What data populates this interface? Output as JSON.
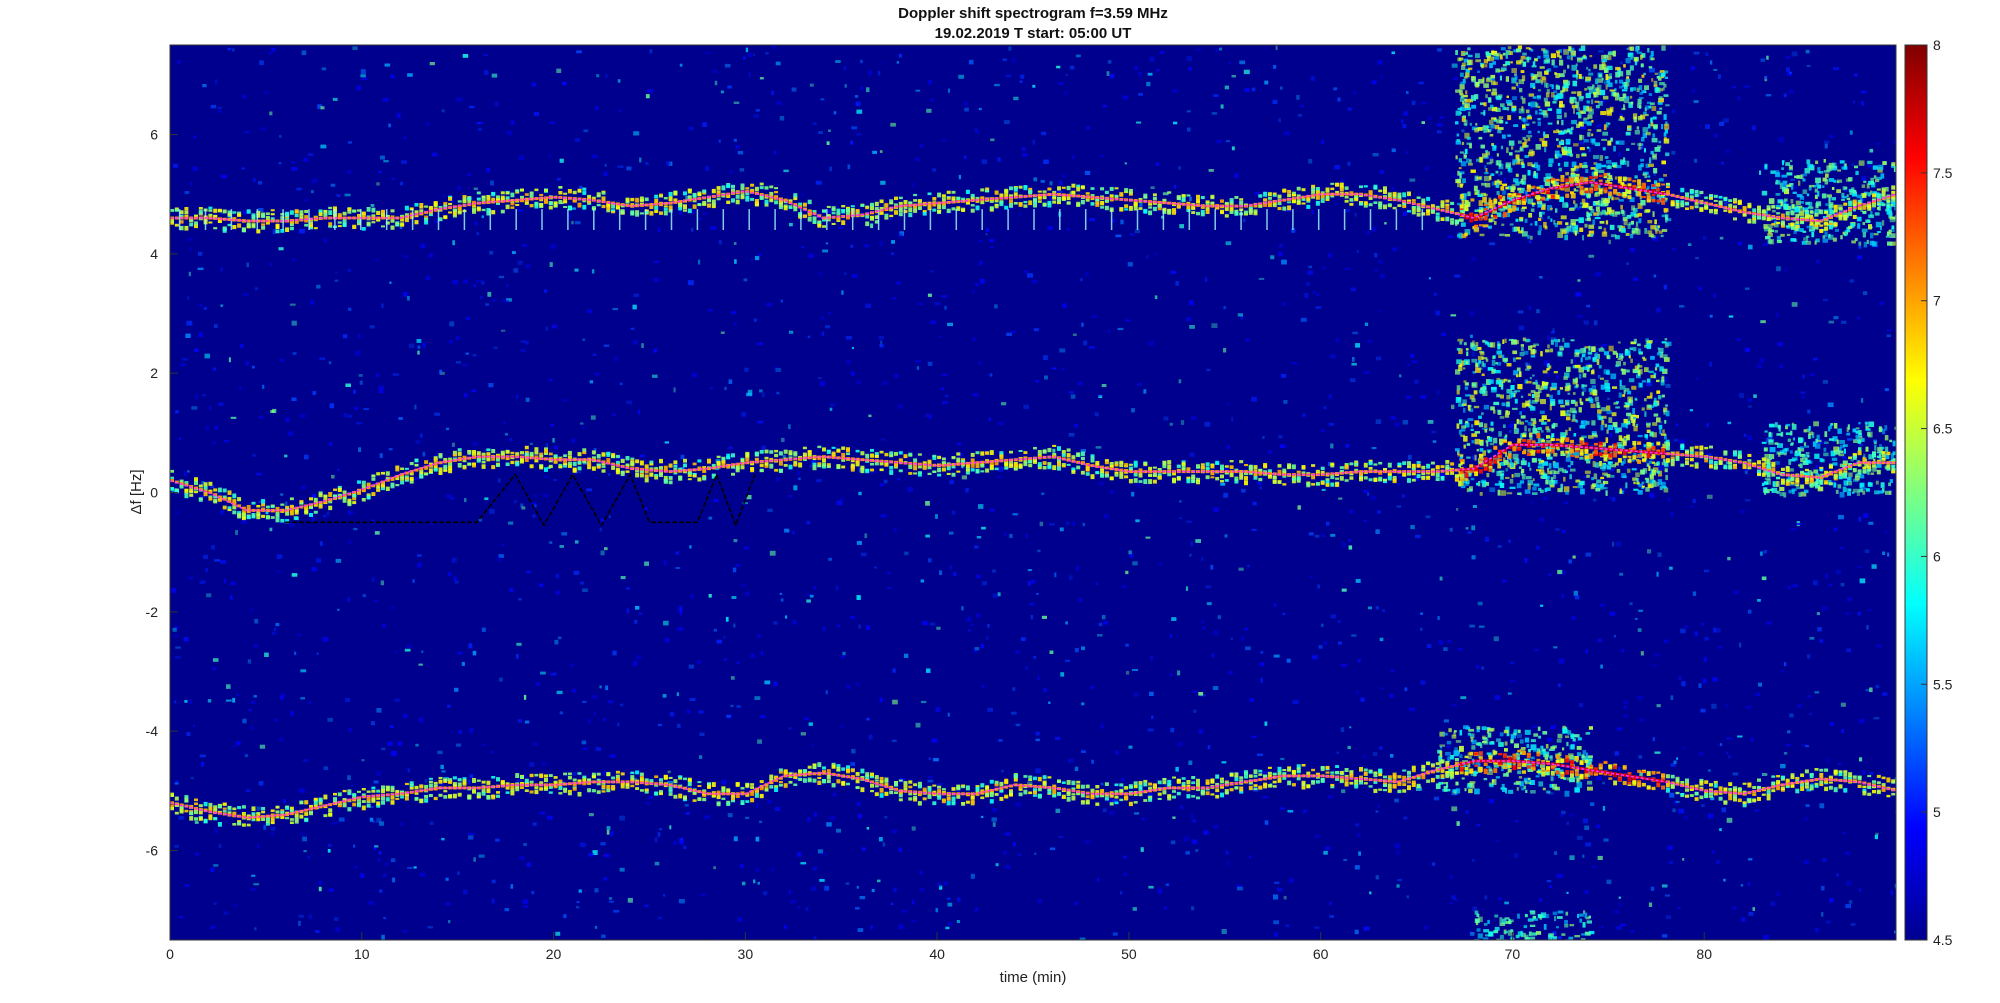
{
  "chart_data": {
    "type": "heatmap",
    "title": "Doppler shift spectrogram f=3.59 MHz",
    "subtitle": "19.02.2019   T start: 05:00 UT",
    "xlabel": "time (min)",
    "ylabel": "Δf [Hz]",
    "xlim": [
      0,
      90
    ],
    "ylim": [
      -7.5,
      7.5
    ],
    "x_ticks": [
      0,
      10,
      20,
      30,
      40,
      50,
      60,
      70,
      80
    ],
    "y_ticks": [
      6,
      4,
      2,
      0,
      -2,
      -4,
      -6
    ],
    "colorbar": {
      "range": [
        4.5,
        8
      ],
      "ticks": [
        "8",
        "7.5",
        "7",
        "6.5",
        "6",
        "5.5",
        "5",
        "4.5"
      ],
      "colormap": "jet"
    },
    "colors": {
      "background": "#00008f",
      "trace": "#ff33ff",
      "secondary": "#000000"
    },
    "series": [
      {
        "x": [
          0,
          2,
          4,
          6,
          8,
          10,
          12,
          14,
          16,
          18,
          20,
          22,
          24,
          26,
          28,
          30,
          32,
          34,
          36,
          38,
          40,
          42,
          44,
          46,
          48,
          50,
          52,
          54,
          56,
          58,
          60,
          62,
          64,
          66,
          68,
          70,
          72,
          74,
          76,
          78,
          80,
          82,
          84,
          86,
          88,
          90
        ],
        "y": [
          4.6,
          4.6,
          4.55,
          4.55,
          4.6,
          4.6,
          4.6,
          4.75,
          4.85,
          4.9,
          4.95,
          4.9,
          4.8,
          4.85,
          4.95,
          5.05,
          4.9,
          4.6,
          4.65,
          4.8,
          4.85,
          4.9,
          4.95,
          5.0,
          4.95,
          4.9,
          4.85,
          4.8,
          4.8,
          4.9,
          5.0,
          5.0,
          4.9,
          4.75,
          4.6,
          4.9,
          5.1,
          5.2,
          5.1,
          5.0,
          4.85,
          4.7,
          4.6,
          4.55,
          4.8,
          5.0
        ]
      },
      {
        "x": [
          0,
          2,
          4,
          6,
          8,
          10,
          12,
          14,
          16,
          18,
          20,
          22,
          24,
          26,
          28,
          30,
          32,
          34,
          36,
          38,
          40,
          42,
          44,
          46,
          48,
          50,
          52,
          54,
          56,
          58,
          60,
          62,
          64,
          66,
          68,
          70,
          72,
          74,
          76,
          78,
          80,
          82,
          84,
          86,
          88,
          90
        ],
        "y": [
          0.2,
          0.0,
          -0.3,
          -0.3,
          -0.15,
          0.05,
          0.3,
          0.5,
          0.6,
          0.6,
          0.55,
          0.55,
          0.4,
          0.35,
          0.4,
          0.5,
          0.55,
          0.6,
          0.55,
          0.5,
          0.45,
          0.5,
          0.55,
          0.6,
          0.45,
          0.35,
          0.35,
          0.35,
          0.35,
          0.3,
          0.3,
          0.35,
          0.35,
          0.35,
          0.4,
          0.8,
          0.8,
          0.75,
          0.7,
          0.65,
          0.6,
          0.5,
          0.3,
          0.25,
          0.5,
          0.5
        ]
      },
      {
        "x": [
          0,
          2,
          4,
          6,
          8,
          10,
          12,
          14,
          16,
          18,
          20,
          22,
          24,
          26,
          28,
          30,
          32,
          34,
          36,
          38,
          40,
          42,
          44,
          46,
          48,
          50,
          52,
          54,
          56,
          58,
          60,
          62,
          64,
          66,
          68,
          70,
          72,
          74,
          76,
          78,
          80,
          82,
          84,
          86,
          88,
          90
        ],
        "y": [
          -5.2,
          -5.35,
          -5.45,
          -5.4,
          -5.25,
          -5.1,
          -5.05,
          -4.95,
          -4.95,
          -4.9,
          -4.9,
          -4.85,
          -4.85,
          -4.9,
          -5.05,
          -5.05,
          -4.75,
          -4.7,
          -4.8,
          -5.0,
          -5.05,
          -5.05,
          -4.9,
          -4.95,
          -5.05,
          -5.05,
          -4.95,
          -4.95,
          -4.85,
          -4.75,
          -4.75,
          -4.8,
          -4.85,
          -4.65,
          -4.5,
          -4.5,
          -4.55,
          -4.65,
          -4.75,
          -4.85,
          -5.0,
          -5.05,
          -4.9,
          -4.8,
          -4.85,
          -5.0
        ]
      }
    ],
    "secondary": {
      "x": [
        6,
        10,
        14,
        16,
        18,
        19.5,
        21,
        22.5,
        24,
        25,
        26,
        27.5,
        28.5,
        29.5,
        30.5
      ],
      "y": [
        -0.5,
        -0.5,
        -0.5,
        -0.5,
        0.3,
        -0.55,
        0.3,
        -0.55,
        0.3,
        -0.5,
        -0.5,
        -0.5,
        0.3,
        -0.55,
        0.3
      ]
    },
    "bursts": [
      {
        "x0": 67,
        "x1": 78,
        "y0": 4.3,
        "y1": 7.5,
        "intensity": 0.75
      },
      {
        "x0": 67,
        "x1": 78,
        "y0": 0.0,
        "y1": 2.6,
        "intensity": 0.7
      },
      {
        "x0": 66,
        "x1": 74,
        "y0": -5.0,
        "y1": -3.9,
        "intensity": 0.55
      },
      {
        "x0": 68,
        "x1": 74,
        "y0": -7.5,
        "y1": -7.0,
        "intensity": 0.45
      },
      {
        "x0": 83,
        "x1": 90,
        "y0": 4.2,
        "y1": 5.6,
        "intensity": 0.55
      },
      {
        "x0": 83,
        "x1": 90,
        "y0": 0.0,
        "y1": 1.2,
        "intensity": 0.5
      }
    ]
  }
}
